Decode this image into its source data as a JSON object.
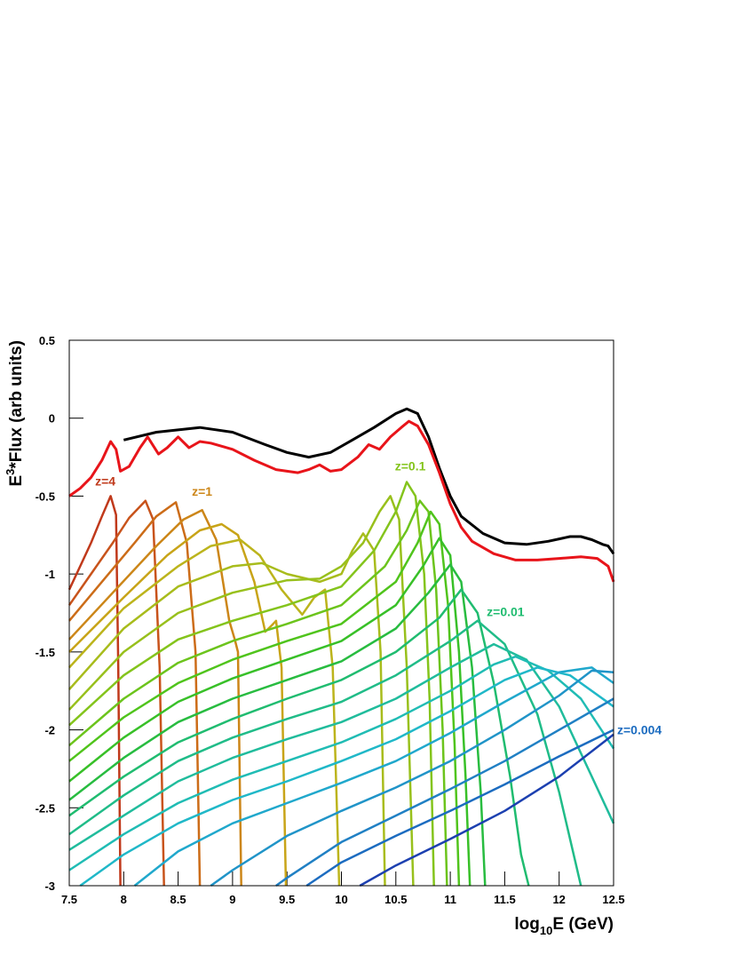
{
  "chart_data": {
    "type": "line",
    "xlabel": [
      "log",
      "10",
      "E (GeV)"
    ],
    "ylabel": [
      "E",
      "3",
      "*Flux (arb units)"
    ],
    "xlim": [
      7.5,
      12.5
    ],
    "ylim": [
      -3,
      0.5
    ],
    "xticks": [
      {
        "value": 7.5,
        "label": "7.5"
      },
      8,
      {
        "value": 8.5,
        "label": "8.5"
      },
      9,
      {
        "value": 9.5,
        "label": "9.5"
      },
      10,
      {
        "value": 10.5,
        "label": "10.5"
      },
      11,
      {
        "value": 11.5,
        "label": "11.5"
      },
      12,
      {
        "value": 12.5,
        "label": "12.5"
      }
    ],
    "yticks": [
      {
        "value": 0.5,
        "label": "0.5"
      },
      0,
      {
        "value": -0.5,
        "label": "-0.5"
      },
      -1,
      {
        "value": -1.5,
        "label": "-1.5"
      },
      -2,
      {
        "value": -2.5,
        "label": "-2.5"
      },
      -3
    ],
    "series": [
      {
        "color": "#000000",
        "x": [
          8.0,
          8.3,
          8.7,
          9.0,
          9.3,
          9.5,
          9.7,
          9.9,
          10.1,
          10.3,
          10.5,
          10.6,
          10.7,
          10.8,
          10.9,
          11.0,
          11.1,
          11.3,
          11.5,
          11.7,
          11.9,
          12.1,
          12.2,
          12.3,
          12.4,
          12.45,
          12.5
        ],
        "values": [
          -0.14,
          -0.09,
          -0.06,
          -0.09,
          -0.17,
          -0.22,
          -0.25,
          -0.22,
          -0.14,
          -0.06,
          0.03,
          0.06,
          0.03,
          -0.12,
          -0.32,
          -0.5,
          -0.63,
          -0.74,
          -0.8,
          -0.81,
          -0.79,
          -0.76,
          -0.76,
          -0.78,
          -0.81,
          -0.82,
          -0.87
        ]
      },
      {
        "color": "#e8141a",
        "x": [
          7.5,
          7.6,
          7.7,
          7.8,
          7.88,
          7.93,
          7.97,
          8.05,
          8.15,
          8.22,
          8.32,
          8.4,
          8.5,
          8.6,
          8.7,
          8.8,
          9.0,
          9.2,
          9.4,
          9.6,
          9.7,
          9.8,
          9.9,
          10.0,
          10.15,
          10.25,
          10.35,
          10.45,
          10.55,
          10.62,
          10.7,
          10.8,
          10.9,
          11.0,
          11.1,
          11.2,
          11.4,
          11.6,
          11.8,
          12.0,
          12.2,
          12.35,
          12.45,
          12.5
        ],
        "values": [
          -0.5,
          -0.45,
          -0.38,
          -0.27,
          -0.15,
          -0.2,
          -0.34,
          -0.31,
          -0.19,
          -0.12,
          -0.23,
          -0.19,
          -0.12,
          -0.19,
          -0.15,
          -0.16,
          -0.2,
          -0.27,
          -0.33,
          -0.35,
          -0.33,
          -0.3,
          -0.34,
          -0.33,
          -0.25,
          -0.17,
          -0.2,
          -0.12,
          -0.06,
          -0.02,
          -0.05,
          -0.17,
          -0.35,
          -0.55,
          -0.7,
          -0.79,
          -0.87,
          -0.91,
          -0.91,
          -0.9,
          -0.89,
          -0.9,
          -0.95,
          -1.05
        ]
      },
      {
        "name": "z=4",
        "color": "#c0391b",
        "x": [
          7.5,
          7.6,
          7.7,
          7.8,
          7.88,
          7.93,
          7.95,
          7.97
        ],
        "values": [
          -1.1,
          -0.95,
          -0.8,
          -0.63,
          -0.5,
          -0.62,
          -1.6,
          -3
        ]
      },
      {
        "color": "#c8531b",
        "x": [
          7.5,
          7.7,
          7.9,
          8.05,
          8.2,
          8.27,
          8.33,
          8.37
        ],
        "values": [
          -1.2,
          -1.0,
          -0.8,
          -0.64,
          -0.53,
          -0.65,
          -1.6,
          -3
        ]
      },
      {
        "color": "#cc6c18",
        "x": [
          7.5,
          7.8,
          8.1,
          8.3,
          8.48,
          8.58,
          8.66,
          8.7
        ],
        "values": [
          -1.3,
          -1.05,
          -0.8,
          -0.63,
          -0.54,
          -0.8,
          -1.5,
          -3
        ]
      },
      {
        "name": "z=1",
        "color": "#cc8618",
        "x": [
          7.5,
          7.9,
          8.3,
          8.55,
          8.72,
          8.85,
          8.97,
          9.02,
          9.05,
          9.08
        ],
        "values": [
          -1.42,
          -1.12,
          -0.82,
          -0.65,
          -0.59,
          -0.78,
          -1.3,
          -1.42,
          -1.5,
          -3
        ]
      },
      {
        "color": "#c8a418",
        "x": [
          7.5,
          8.0,
          8.4,
          8.7,
          8.9,
          9.05,
          9.2,
          9.3,
          9.36,
          9.4,
          9.45,
          9.49
        ],
        "values": [
          -1.5,
          -1.15,
          -0.88,
          -0.72,
          -0.68,
          -0.75,
          -1.05,
          -1.37,
          -1.33,
          -1.3,
          -1.6,
          -3
        ]
      },
      {
        "color": "#bcb41c",
        "x": [
          7.5,
          8.0,
          8.5,
          8.8,
          9.07,
          9.25,
          9.45,
          9.64,
          9.75,
          9.85,
          9.92,
          9.98
        ],
        "values": [
          -1.6,
          -1.22,
          -0.95,
          -0.82,
          -0.78,
          -0.88,
          -1.1,
          -1.26,
          -1.15,
          -1.1,
          -1.6,
          -3
        ]
      },
      {
        "color": "#a8bc1c",
        "x": [
          7.5,
          8.0,
          8.5,
          9.0,
          9.27,
          9.5,
          9.8,
          10.0,
          10.1,
          10.2,
          10.3,
          10.36,
          10.4
        ],
        "values": [
          -1.74,
          -1.35,
          -1.08,
          -0.95,
          -0.93,
          -1.0,
          -1.05,
          -1.0,
          -0.85,
          -0.74,
          -0.85,
          -1.5,
          -3
        ]
      },
      {
        "color": "#98c01c",
        "x": [
          7.5,
          8.0,
          8.5,
          9.0,
          9.5,
          9.8,
          10.0,
          10.2,
          10.35,
          10.45,
          10.53,
          10.6,
          10.66
        ],
        "values": [
          -1.87,
          -1.5,
          -1.25,
          -1.12,
          -1.04,
          -1.03,
          -0.95,
          -0.8,
          -0.6,
          -0.5,
          -0.65,
          -1.6,
          -3
        ]
      },
      {
        "name": "z=0.1",
        "color": "#84c41c",
        "x": [
          7.5,
          8.0,
          8.5,
          9.0,
          9.5,
          10.0,
          10.3,
          10.5,
          10.6,
          10.68,
          10.76,
          10.81,
          10.85
        ],
        "values": [
          -1.97,
          -1.65,
          -1.42,
          -1.3,
          -1.2,
          -1.08,
          -0.85,
          -0.6,
          -0.41,
          -0.5,
          -1.0,
          -1.8,
          -3
        ]
      },
      {
        "color": "#6cc41c",
        "x": [
          7.5,
          8.0,
          8.5,
          9.0,
          9.5,
          10.0,
          10.4,
          10.6,
          10.72,
          10.8,
          10.87,
          10.93,
          10.97
        ],
        "values": [
          -2.1,
          -1.8,
          -1.57,
          -1.43,
          -1.32,
          -1.2,
          -0.95,
          -0.72,
          -0.53,
          -0.6,
          -1.1,
          -2.0,
          -3
        ]
      },
      {
        "color": "#50c41c",
        "x": [
          7.5,
          8.0,
          8.5,
          9.0,
          9.5,
          10.0,
          10.5,
          10.7,
          10.82,
          10.9,
          10.98,
          11.04,
          11.08
        ],
        "values": [
          -2.2,
          -1.92,
          -1.7,
          -1.55,
          -1.43,
          -1.32,
          -1.05,
          -0.8,
          -0.6,
          -0.68,
          -1.2,
          -2.1,
          -3
        ]
      },
      {
        "color": "#38c028",
        "x": [
          7.5,
          8.0,
          8.5,
          9.0,
          9.5,
          10.0,
          10.5,
          10.75,
          10.9,
          11.0,
          11.08,
          11.14,
          11.18
        ],
        "values": [
          -2.33,
          -2.05,
          -1.82,
          -1.67,
          -1.55,
          -1.43,
          -1.2,
          -0.95,
          -0.77,
          -0.88,
          -1.5,
          -2.3,
          -3
        ]
      },
      {
        "color": "#28bc40",
        "x": [
          7.5,
          8.0,
          8.5,
          9.0,
          9.5,
          10.0,
          10.5,
          10.8,
          11.0,
          11.1,
          11.2,
          11.28,
          11.32
        ],
        "values": [
          -2.45,
          -2.18,
          -1.95,
          -1.8,
          -1.68,
          -1.56,
          -1.35,
          -1.12,
          -0.94,
          -1.05,
          -1.6,
          -2.4,
          -3
        ]
      },
      {
        "name": "z=0.01",
        "color": "#20bc70",
        "x": [
          7.5,
          8.0,
          8.5,
          9.0,
          9.5,
          10.0,
          10.5,
          10.9,
          11.1,
          11.25,
          11.4,
          11.55,
          11.65,
          11.72
        ],
        "values": [
          -2.55,
          -2.3,
          -2.08,
          -1.93,
          -1.8,
          -1.68,
          -1.5,
          -1.28,
          -1.1,
          -1.25,
          -1.7,
          -2.3,
          -2.8,
          -3
        ]
      },
      {
        "color": "#20bc88",
        "x": [
          7.5,
          8.0,
          8.5,
          9.0,
          9.5,
          10.0,
          10.5,
          11.0,
          11.25,
          11.5,
          11.8,
          12.0,
          12.15,
          12.2
        ],
        "values": [
          -2.67,
          -2.42,
          -2.2,
          -2.05,
          -1.93,
          -1.82,
          -1.65,
          -1.43,
          -1.3,
          -1.45,
          -1.9,
          -2.4,
          -2.85,
          -3
        ]
      },
      {
        "color": "#20bc9c",
        "x": [
          7.5,
          8.0,
          8.5,
          9.0,
          9.5,
          10.0,
          10.5,
          11.0,
          11.4,
          11.7,
          12.0,
          12.3,
          12.5
        ],
        "values": [
          -2.77,
          -2.55,
          -2.33,
          -2.18,
          -2.06,
          -1.95,
          -1.8,
          -1.6,
          -1.45,
          -1.55,
          -1.85,
          -2.3,
          -2.6
        ]
      },
      {
        "color": "#20bcb4",
        "x": [
          7.5,
          8.0,
          8.5,
          9.0,
          9.5,
          10.0,
          10.5,
          11.0,
          11.4,
          11.6,
          11.9,
          12.2,
          12.5
        ],
        "values": [
          -2.9,
          -2.67,
          -2.47,
          -2.32,
          -2.2,
          -2.08,
          -1.93,
          -1.75,
          -1.58,
          -1.53,
          -1.62,
          -1.8,
          -2.12
        ]
      },
      {
        "color": "#20b8c8",
        "x": [
          7.6,
          8.0,
          8.5,
          9.0,
          9.5,
          10.0,
          10.5,
          11.0,
          11.5,
          11.8,
          12.1,
          12.5
        ],
        "values": [
          -3,
          -2.8,
          -2.6,
          -2.45,
          -2.33,
          -2.2,
          -2.06,
          -1.88,
          -1.68,
          -1.6,
          -1.65,
          -1.85
        ]
      },
      {
        "color": "#20a8cc",
        "x": [
          8.1,
          8.5,
          9.0,
          9.5,
          10.0,
          10.5,
          11.0,
          11.5,
          12.0,
          12.3,
          12.5
        ],
        "values": [
          -3,
          -2.78,
          -2.6,
          -2.47,
          -2.34,
          -2.2,
          -2.02,
          -1.82,
          -1.63,
          -1.6,
          -1.7
        ]
      },
      {
        "color": "#2094c8",
        "x": [
          8.8,
          9.0,
          9.5,
          10.0,
          10.5,
          11.0,
          11.5,
          12.0,
          12.3,
          12.5
        ],
        "values": [
          -3,
          -2.9,
          -2.68,
          -2.52,
          -2.37,
          -2.2,
          -2.0,
          -1.78,
          -1.62,
          -1.63
        ]
      },
      {
        "color": "#2080c4",
        "x": [
          9.4,
          9.5,
          10.0,
          10.5,
          11.0,
          11.5,
          12.0,
          12.5
        ],
        "values": [
          -3,
          -2.95,
          -2.72,
          -2.55,
          -2.38,
          -2.2,
          -2.0,
          -1.8
        ]
      },
      {
        "name": "z=0.004",
        "color": "#1c6cc0",
        "x": [
          9.68,
          10.0,
          10.5,
          11.0,
          11.5,
          12.0,
          12.5
        ],
        "values": [
          -3,
          -2.85,
          -2.68,
          -2.52,
          -2.35,
          -2.17,
          -2.0
        ]
      },
      {
        "color": "#1c40b0",
        "x": [
          10.17,
          10.5,
          11.0,
          11.5,
          12.0,
          12.5
        ],
        "values": [
          -3,
          -2.87,
          -2.7,
          -2.52,
          -2.3,
          -2.03
        ]
      }
    ]
  }
}
